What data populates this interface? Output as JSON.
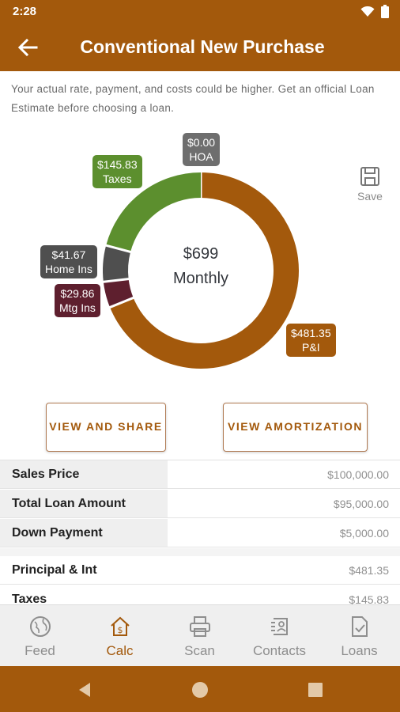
{
  "status_bar": {
    "time": "2:28"
  },
  "app_bar": {
    "title": "Conventional New Purchase"
  },
  "disclaimer": "Your actual rate, payment, and costs could be higher. Get an official Loan Estimate before choosing a loan.",
  "chart_data": {
    "type": "pie",
    "style": "donut",
    "center_amount": "$699",
    "center_label": "Monthly",
    "total": 698.71,
    "slices": [
      {
        "label": "HOA",
        "value": 0.0,
        "display": "$0.00",
        "color": "#6e6e6e"
      },
      {
        "label": "P&I",
        "value": 481.35,
        "display": "$481.35",
        "color": "#a3590c"
      },
      {
        "label": "Mtg Ins",
        "value": 29.86,
        "display": "$29.86",
        "color": "#5e1f2e"
      },
      {
        "label": "Home Ins",
        "value": 41.67,
        "display": "$41.67",
        "color": "#4f4f4f"
      },
      {
        "label": "Taxes",
        "value": 145.83,
        "display": "$145.83",
        "color": "#5c8f2e"
      }
    ]
  },
  "save": {
    "label": "Save"
  },
  "buttons": {
    "view_share": "VIEW AND SHARE",
    "view_amortization": "VIEW AMORTIZATION"
  },
  "table": {
    "rows": [
      {
        "label": "Sales Price",
        "value": "$100,000.00"
      },
      {
        "label": "Total Loan Amount",
        "value": "$95,000.00"
      },
      {
        "label": "Down Payment",
        "value": "$5,000.00"
      },
      {
        "label": "Principal & Int",
        "value": "$481.35"
      },
      {
        "label": "Taxes",
        "value": "$145.83"
      }
    ]
  },
  "bottom_nav": {
    "items": [
      {
        "label": "Feed",
        "icon": "globe-icon"
      },
      {
        "label": "Calc",
        "icon": "calculator-house-icon",
        "active": true
      },
      {
        "label": "Scan",
        "icon": "printer-icon"
      },
      {
        "label": "Contacts",
        "icon": "contacts-icon"
      },
      {
        "label": "Loans",
        "icon": "document-check-icon"
      }
    ]
  }
}
